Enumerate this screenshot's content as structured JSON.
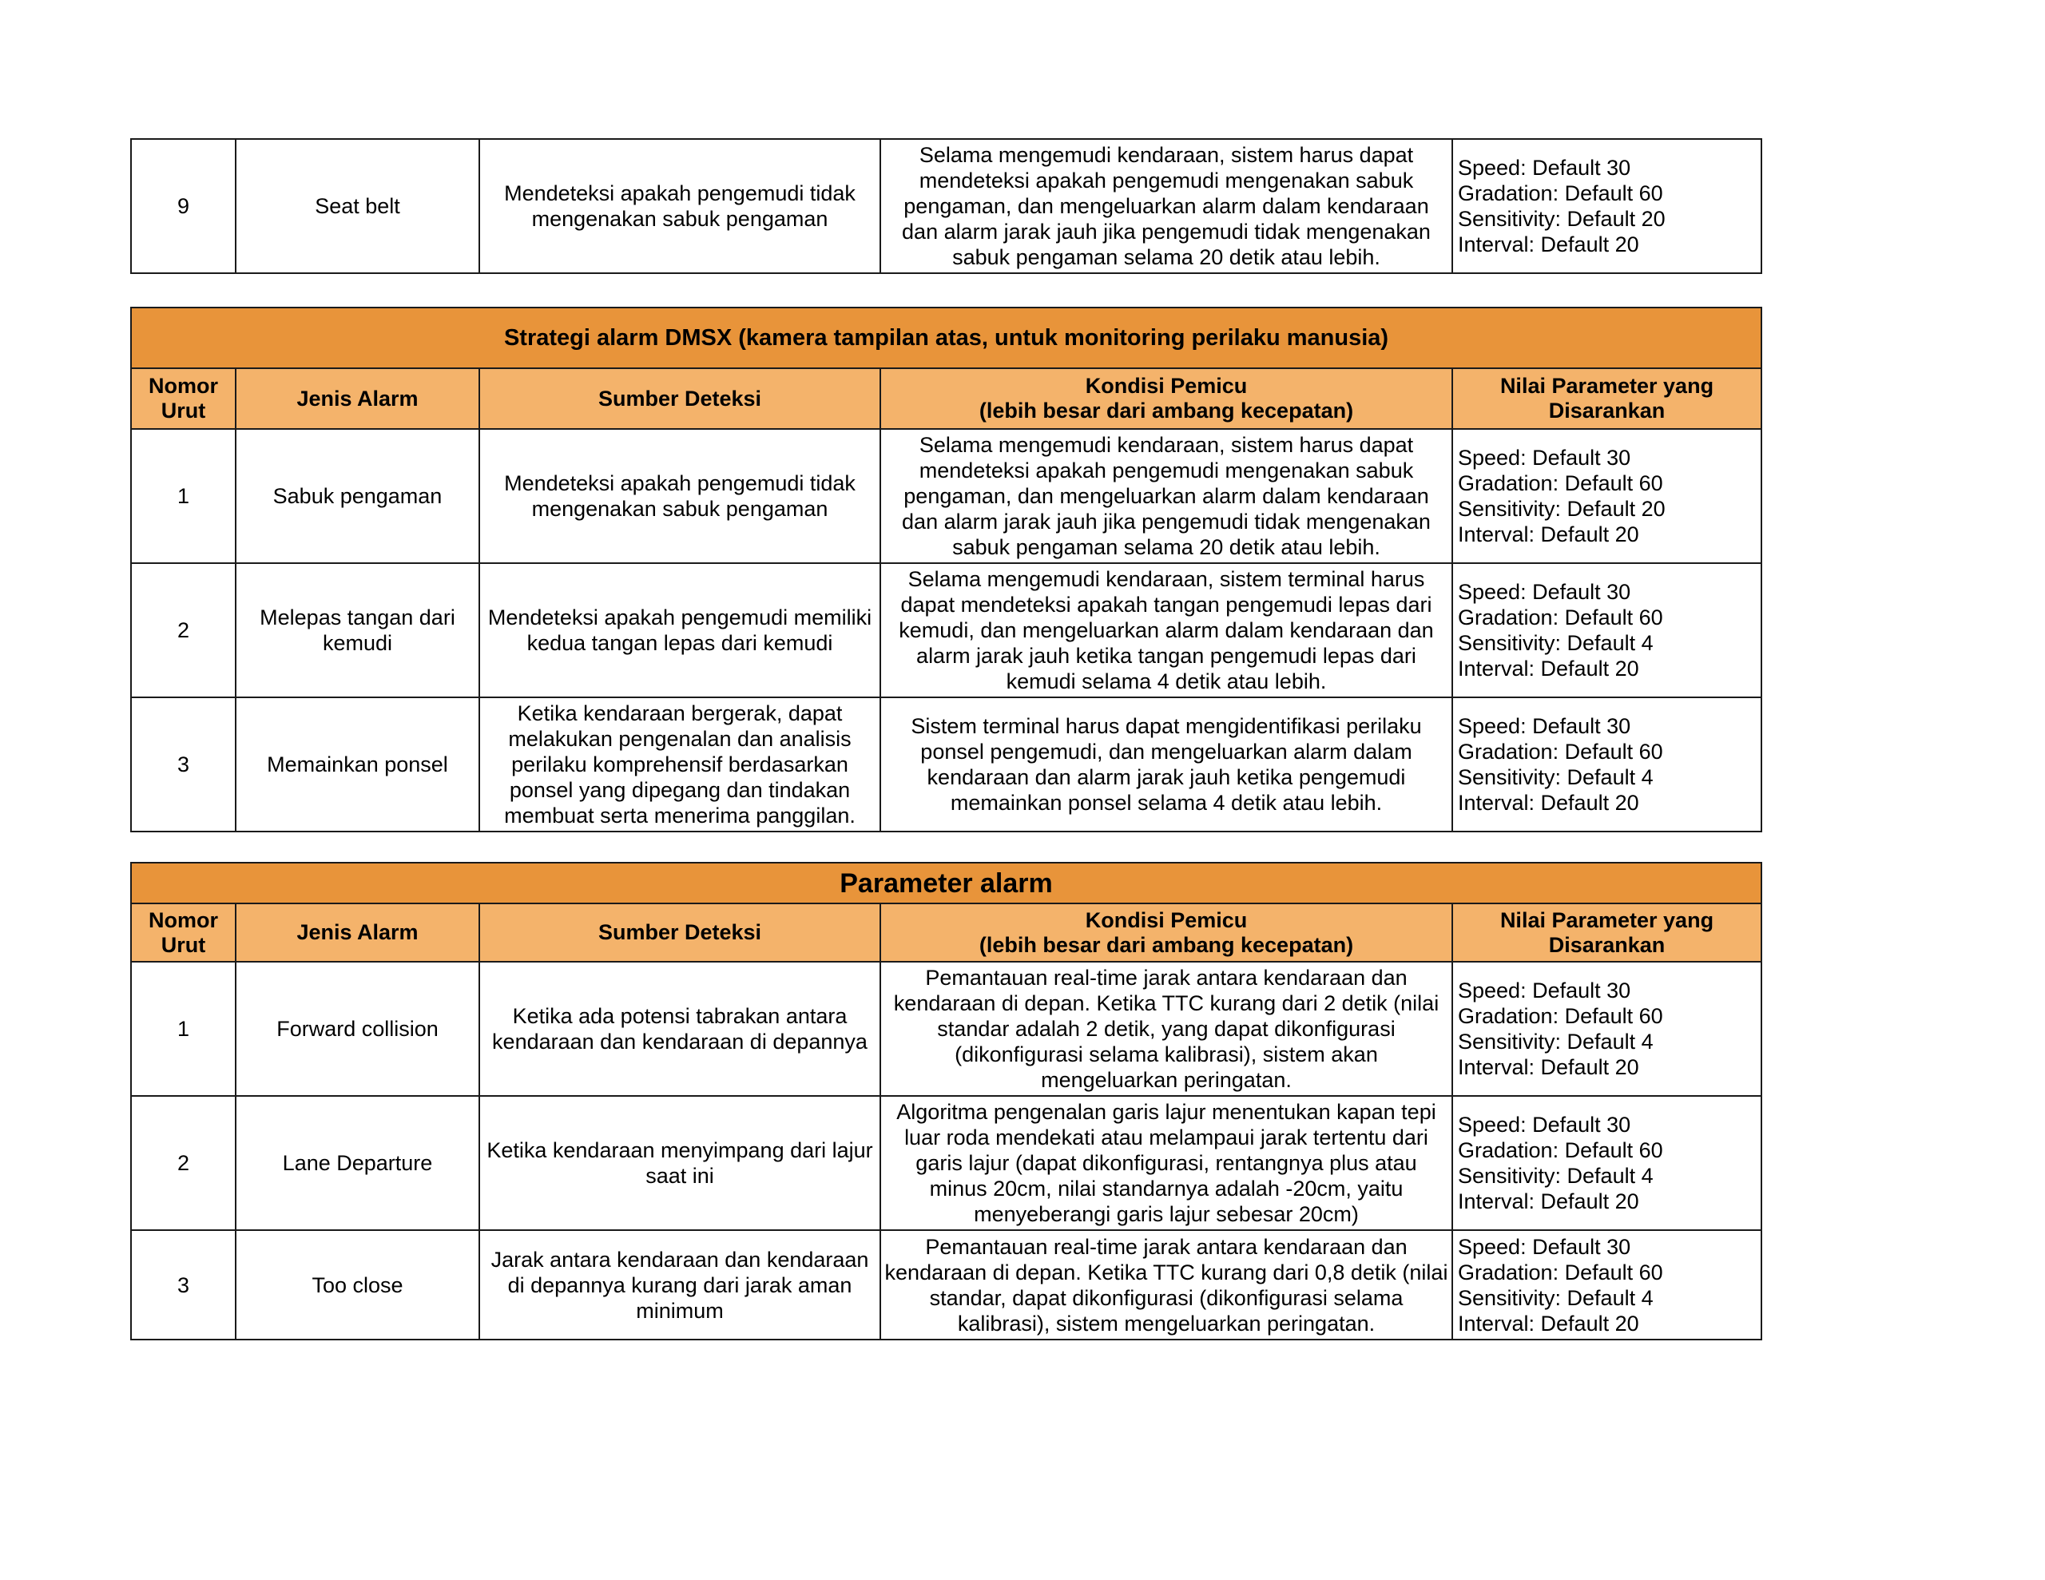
{
  "colors": {
    "title_bg": "#E8943A",
    "header_bg": "#F4B36B"
  },
  "table_top": {
    "rows": [
      {
        "no": "9",
        "jenis": "Seat belt",
        "sumber": "Mendeteksi apakah pengemudi tidak mengenakan sabuk pengaman",
        "kondisi": "Selama mengemudi kendaraan, sistem harus dapat mendeteksi apakah pengemudi mengenakan sabuk pengaman, dan mengeluarkan alarm dalam kendaraan dan alarm jarak jauh jika pengemudi tidak mengenakan sabuk pengaman selama 20 detik atau lebih.",
        "params": [
          "Speed: Default 30",
          "Gradation: Default 60",
          "Sensitivity: Default 20",
          "Interval: Default 20"
        ]
      }
    ]
  },
  "headers": {
    "no": "Nomor Urut",
    "jenis": "Jenis Alarm",
    "sumber": "Sumber Deteksi",
    "kondisi_1": "Kondisi Pemicu",
    "kondisi_2": "(lebih besar dari ambang kecepatan)",
    "nilai": "Nilai Parameter yang Disarankan"
  },
  "table_dmsx": {
    "title": "Strategi alarm DMSX (kamera tampilan atas, untuk monitoring perilaku manusia)",
    "rows": [
      {
        "no": "1",
        "jenis": "Sabuk pengaman",
        "sumber": "Mendeteksi apakah pengemudi tidak mengenakan sabuk pengaman",
        "kondisi": "Selama mengemudi kendaraan, sistem harus dapat mendeteksi apakah pengemudi mengenakan sabuk pengaman, dan mengeluarkan alarm dalam kendaraan dan alarm jarak jauh jika pengemudi tidak mengenakan sabuk pengaman selama 20 detik atau lebih.",
        "params": [
          "Speed: Default 30",
          "Gradation: Default 60",
          "Sensitivity: Default 20",
          "Interval: Default 20"
        ]
      },
      {
        "no": "2",
        "jenis": "Melepas tangan dari kemudi",
        "sumber": "Mendeteksi apakah pengemudi memiliki kedua tangan lepas dari kemudi",
        "kondisi": "Selama mengemudi kendaraan, sistem terminal harus dapat mendeteksi apakah tangan pengemudi lepas dari kemudi, dan mengeluarkan alarm dalam kendaraan dan alarm jarak jauh ketika tangan pengemudi lepas dari kemudi selama 4 detik atau lebih.",
        "params": [
          "Speed: Default 30",
          "Gradation: Default 60",
          "Sensitivity: Default 4",
          "Interval: Default 20"
        ]
      },
      {
        "no": "3",
        "jenis": "Memainkan ponsel",
        "sumber": "Ketika kendaraan bergerak, dapat melakukan pengenalan dan analisis perilaku komprehensif berdasarkan ponsel yang dipegang dan tindakan membuat serta menerima panggilan.",
        "kondisi": "Sistem terminal harus dapat mengidentifikasi perilaku ponsel pengemudi, dan mengeluarkan alarm dalam kendaraan dan alarm jarak jauh ketika pengemudi memainkan ponsel selama 4 detik atau lebih.",
        "params": [
          "Speed: Default 30",
          "Gradation: Default 60",
          "Sensitivity: Default 4",
          "Interval: Default 20"
        ]
      }
    ]
  },
  "table_param": {
    "title": "Parameter alarm",
    "rows": [
      {
        "no": "1",
        "jenis": "Forward collision",
        "sumber": "Ketika ada potensi tabrakan antara kendaraan dan kendaraan di depannya",
        "kondisi": "Pemantauan real-time jarak antara kendaraan dan kendaraan di depan. Ketika TTC kurang dari 2 detik (nilai standar adalah 2 detik, yang dapat dikonfigurasi (dikonfigurasi selama kalibrasi), sistem akan mengeluarkan peringatan.",
        "params": [
          "Speed: Default 30",
          "Gradation: Default 60",
          "Sensitivity: Default 4",
          "Interval: Default 20"
        ]
      },
      {
        "no": "2",
        "jenis": "Lane Departure",
        "sumber": "Ketika kendaraan menyimpang dari lajur saat ini",
        "kondisi": "Algoritma pengenalan garis lajur menentukan kapan tepi luar roda mendekati atau melampaui jarak tertentu dari garis lajur (dapat dikonfigurasi, rentangnya plus atau minus 20cm, nilai standarnya adalah -20cm, yaitu menyeberangi garis lajur sebesar 20cm)",
        "params": [
          "Speed: Default 30",
          "Gradation: Default 60",
          "Sensitivity: Default 4",
          "Interval: Default 20"
        ]
      },
      {
        "no": "3",
        "jenis": "Too close",
        "sumber": "Jarak antara kendaraan dan kendaraan di depannya kurang dari jarak aman minimum",
        "kondisi": "Pemantauan real-time jarak antara kendaraan dan kendaraan di depan. Ketika TTC kurang dari 0,8 detik (nilai standar, dapat dikonfigurasi (dikonfigurasi selama kalibrasi), sistem mengeluarkan peringatan.",
        "params": [
          "Speed: Default 30",
          "Gradation: Default 60",
          "Sensitivity: Default 4",
          "Interval: Default 20"
        ]
      }
    ]
  }
}
